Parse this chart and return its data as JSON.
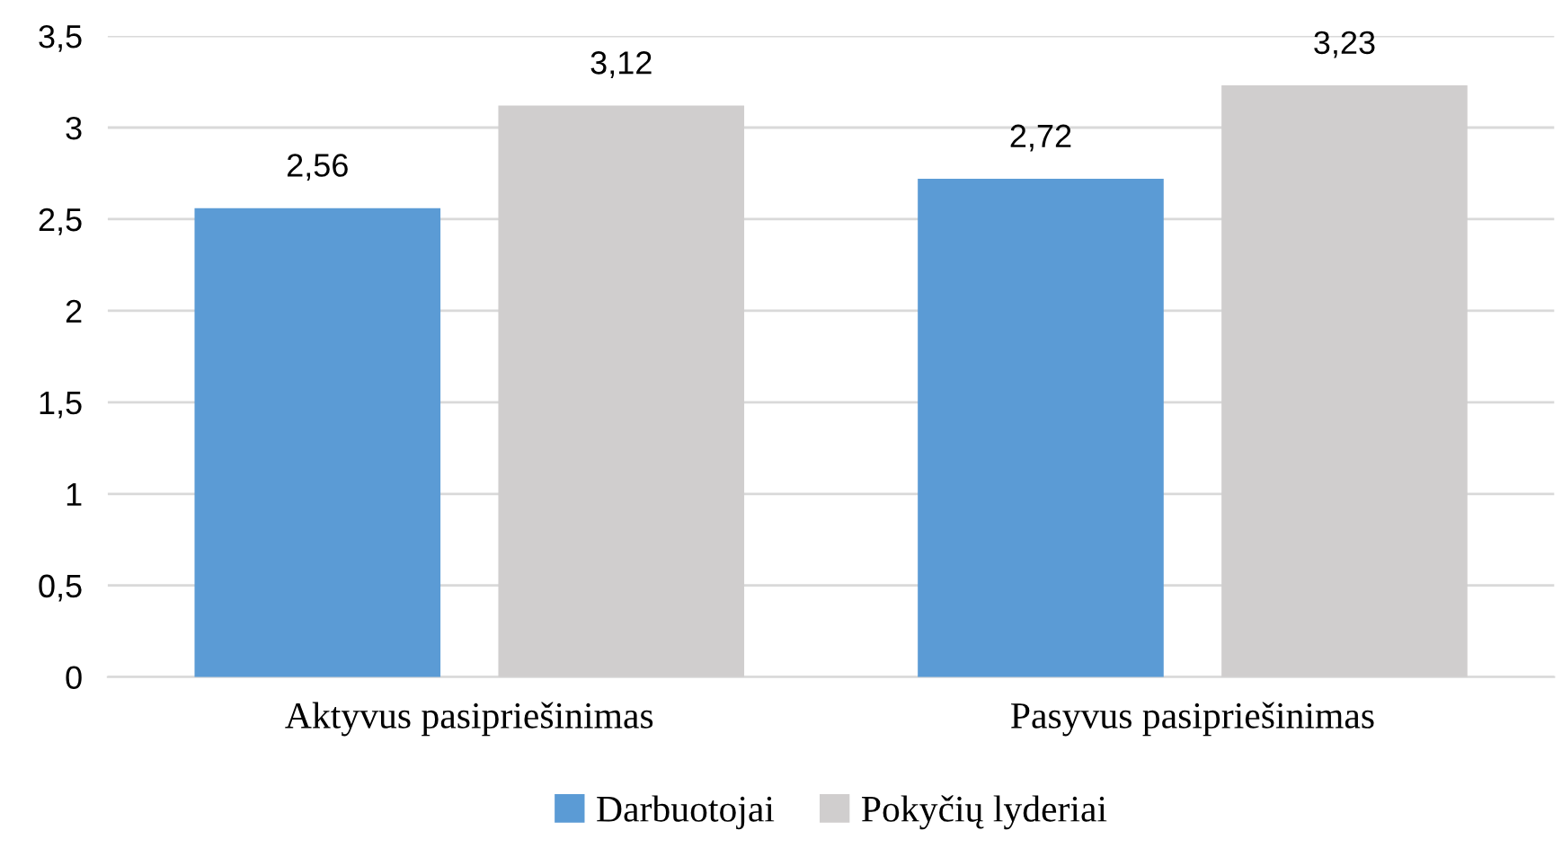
{
  "chart_data": {
    "type": "bar",
    "categories": [
      "Aktyvus pasipriešinimas",
      "Pasyvus pasipriešinimas"
    ],
    "series": [
      {
        "name": "Darbuotojai",
        "color": "#5b9bd5",
        "values": [
          2.56,
          2.72
        ],
        "value_labels": [
          "2,56",
          "2,72"
        ]
      },
      {
        "name": "Pokyčių lyderiai",
        "color": "#d0cece",
        "values": [
          3.12,
          3.23
        ],
        "value_labels": [
          "3,12",
          "3,23"
        ]
      }
    ],
    "ylim": [
      0,
      3.5
    ],
    "yticks": [
      0,
      {
        "value": 0.5,
        "label": "0,5"
      },
      1,
      {
        "value": 1.5,
        "label": "1,5"
      },
      2,
      {
        "value": 2.5,
        "label": "2,5"
      },
      3,
      {
        "value": 3.5,
        "label": "3,5"
      }
    ],
    "grid": "y",
    "legend": "bottom"
  }
}
